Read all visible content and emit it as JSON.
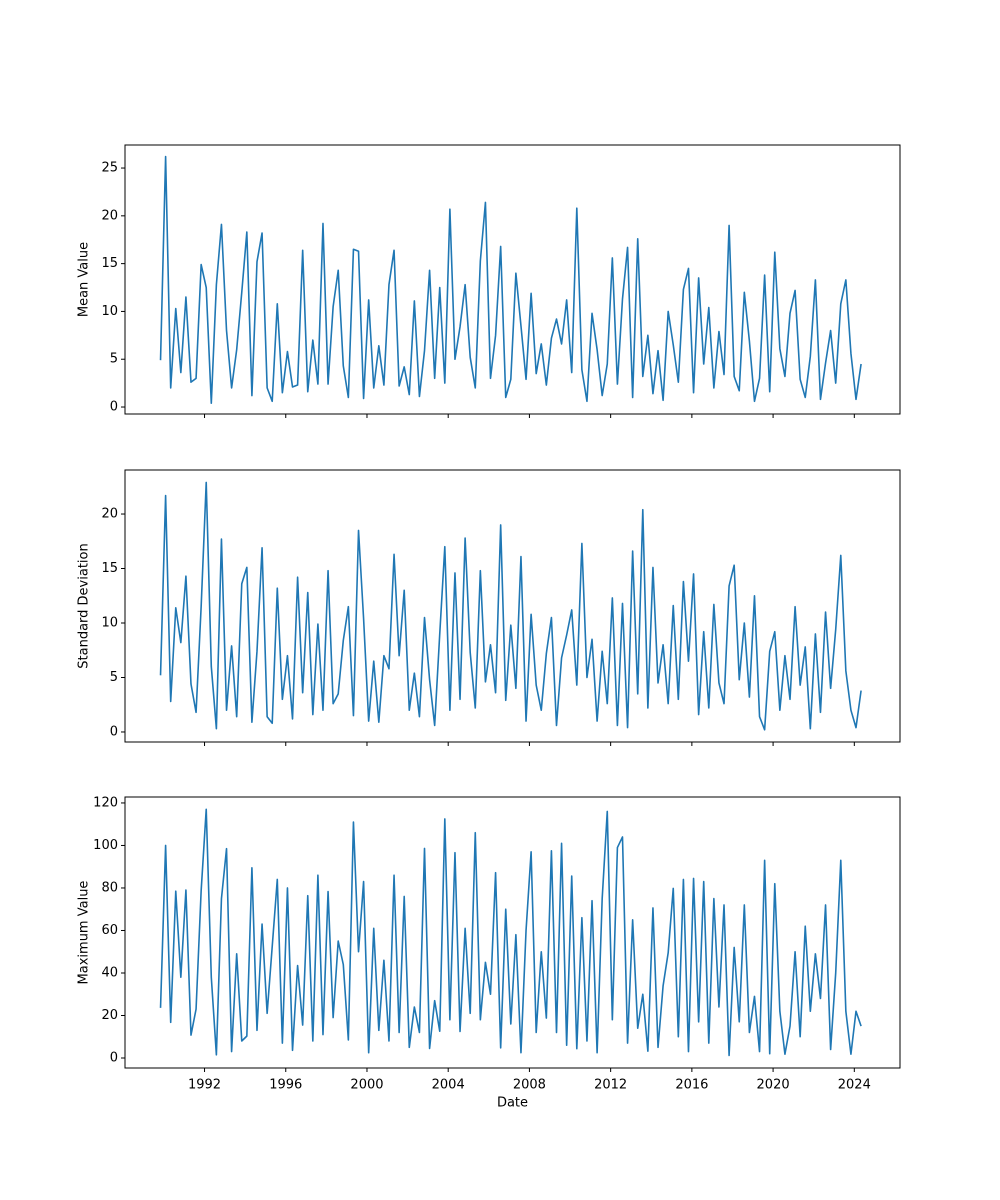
{
  "chart_data": [
    {
      "type": "line",
      "ylabel": "Mean Value",
      "color": "#1f77b4",
      "x": [
        "1989-11",
        "1990-02",
        "1990-05",
        "1990-08",
        "1990-11",
        "1991-02",
        "1991-05",
        "1991-08",
        "1991-11",
        "1992-02",
        "1992-05",
        "1992-08",
        "1992-11",
        "1993-02",
        "1993-05",
        "1993-08",
        "1993-11",
        "1994-02",
        "1994-05",
        "1994-08",
        "1994-11",
        "1995-02",
        "1995-05",
        "1995-08",
        "1995-11",
        "1996-02",
        "1996-05",
        "1996-08",
        "1996-11",
        "1997-02",
        "1997-05",
        "1997-08",
        "1997-11",
        "1998-02",
        "1998-05",
        "1998-08",
        "1998-11",
        "1999-02",
        "1999-05",
        "1999-08",
        "1999-11",
        "2000-02",
        "2000-05",
        "2000-08",
        "2000-11",
        "2001-02",
        "2001-05",
        "2001-08",
        "2001-11",
        "2002-02",
        "2002-05",
        "2002-08",
        "2002-11",
        "2003-02",
        "2003-05",
        "2003-08",
        "2003-11",
        "2004-02",
        "2004-05",
        "2004-08",
        "2004-11",
        "2005-02",
        "2005-05",
        "2005-08",
        "2005-11",
        "2006-02",
        "2006-05",
        "2006-08",
        "2006-11",
        "2007-02",
        "2007-05",
        "2007-08",
        "2007-11",
        "2008-02",
        "2008-05",
        "2008-08",
        "2008-11",
        "2009-02",
        "2009-05",
        "2009-08",
        "2009-11",
        "2010-02",
        "2010-05",
        "2010-08",
        "2010-11",
        "2011-02",
        "2011-05",
        "2011-08",
        "2011-11",
        "2012-02",
        "2012-05",
        "2012-08",
        "2012-11",
        "2013-02",
        "2013-05",
        "2013-08",
        "2013-11",
        "2014-02",
        "2014-05",
        "2014-08",
        "2014-11",
        "2015-02",
        "2015-05",
        "2015-08",
        "2015-11",
        "2016-02",
        "2016-05",
        "2016-08",
        "2016-11",
        "2017-02",
        "2017-05",
        "2017-08",
        "2017-11",
        "2018-02",
        "2018-05",
        "2018-08",
        "2018-11",
        "2019-02",
        "2019-05",
        "2019-08",
        "2019-11",
        "2020-02",
        "2020-05",
        "2020-08",
        "2020-11",
        "2021-02",
        "2021-05",
        "2021-08",
        "2021-11",
        "2022-02",
        "2022-05",
        "2022-08",
        "2022-11",
        "2023-02",
        "2023-05",
        "2023-08",
        "2023-11",
        "2024-02",
        "2024-05"
      ],
      "values": [
        4.9,
        26.2,
        2.0,
        10.3,
        3.6,
        11.5,
        2.6,
        3.0,
        14.9,
        12.5,
        0.4,
        12.8,
        19.1,
        8.0,
        2.0,
        6.0,
        12.0,
        18.3,
        1.2,
        15.2,
        18.2,
        2.0,
        0.6,
        10.8,
        1.5,
        5.8,
        2.1,
        2.3,
        16.4,
        1.6,
        7.0,
        2.4,
        19.2,
        2.4,
        10.5,
        14.3,
        4.3,
        1.0,
        16.5,
        16.3,
        0.9,
        11.2,
        2.0,
        6.4,
        2.3,
        12.8,
        16.4,
        2.2,
        4.2,
        1.3,
        11.1,
        1.1,
        5.9,
        14.3,
        3.0,
        12.5,
        2.5,
        20.7,
        5.0,
        8.4,
        12.8,
        5.2,
        2.0,
        15.3,
        21.4,
        3.0,
        7.5,
        16.8,
        1.0,
        2.9,
        14.0,
        8.5,
        2.9,
        11.9,
        3.5,
        6.6,
        2.3,
        7.2,
        9.2,
        6.6,
        11.2,
        3.6,
        20.8,
        3.9,
        0.6,
        9.8,
        6.0,
        1.2,
        4.5,
        15.6,
        2.4,
        11.3,
        16.7,
        1.0,
        17.6,
        3.2,
        7.5,
        1.4,
        5.9,
        0.7,
        10.0,
        6.5,
        2.6,
        12.3,
        14.5,
        1.5,
        13.5,
        4.5,
        10.4,
        2.0,
        7.9,
        3.4,
        19.0,
        3.2,
        1.7,
        12.0,
        6.9,
        0.6,
        3.0,
        13.8,
        1.6,
        16.2,
        6.1,
        3.2,
        9.8,
        12.2,
        2.9,
        1.0,
        5.3,
        13.3,
        0.8,
        4.6,
        8.0,
        2.5,
        10.8,
        13.3,
        5.6,
        0.8,
        4.5
      ],
      "xlim": [
        "1988-02",
        "2026-04"
      ],
      "xticks": [
        "1992-01",
        "1996-01",
        "2000-01",
        "2004-01",
        "2008-01",
        "2012-01",
        "2016-01",
        "2020-01",
        "2024-01"
      ],
      "ylim": [
        -0.73,
        27.41
      ],
      "yticks": [
        0,
        5,
        10,
        15,
        20,
        25
      ]
    },
    {
      "type": "line",
      "ylabel": "Standard Deviation",
      "color": "#1f77b4",
      "x": [
        "1989-11",
        "1990-02",
        "1990-05",
        "1990-08",
        "1990-11",
        "1991-02",
        "1991-05",
        "1991-08",
        "1991-11",
        "1992-02",
        "1992-05",
        "1992-08",
        "1992-11",
        "1993-02",
        "1993-05",
        "1993-08",
        "1993-11",
        "1994-02",
        "1994-05",
        "1994-08",
        "1994-11",
        "1995-02",
        "1995-05",
        "1995-08",
        "1995-11",
        "1996-02",
        "1996-05",
        "1996-08",
        "1996-11",
        "1997-02",
        "1997-05",
        "1997-08",
        "1997-11",
        "1998-02",
        "1998-05",
        "1998-08",
        "1998-11",
        "1999-02",
        "1999-05",
        "1999-08",
        "1999-11",
        "2000-02",
        "2000-05",
        "2000-08",
        "2000-11",
        "2001-02",
        "2001-05",
        "2001-08",
        "2001-11",
        "2002-02",
        "2002-05",
        "2002-08",
        "2002-11",
        "2003-02",
        "2003-05",
        "2003-08",
        "2003-11",
        "2004-02",
        "2004-05",
        "2004-08",
        "2004-11",
        "2005-02",
        "2005-05",
        "2005-08",
        "2005-11",
        "2006-02",
        "2006-05",
        "2006-08",
        "2006-11",
        "2007-02",
        "2007-05",
        "2007-08",
        "2007-11",
        "2008-02",
        "2008-05",
        "2008-08",
        "2008-11",
        "2009-02",
        "2009-05",
        "2009-08",
        "2009-11",
        "2010-02",
        "2010-05",
        "2010-08",
        "2010-11",
        "2011-02",
        "2011-05",
        "2011-08",
        "2011-11",
        "2012-02",
        "2012-05",
        "2012-08",
        "2012-11",
        "2013-02",
        "2013-05",
        "2013-08",
        "2013-11",
        "2014-02",
        "2014-05",
        "2014-08",
        "2014-11",
        "2015-02",
        "2015-05",
        "2015-08",
        "2015-11",
        "2016-02",
        "2016-05",
        "2016-08",
        "2016-11",
        "2017-02",
        "2017-05",
        "2017-08",
        "2017-11",
        "2018-02",
        "2018-05",
        "2018-08",
        "2018-11",
        "2019-02",
        "2019-05",
        "2019-08",
        "2019-11",
        "2020-02",
        "2020-05",
        "2020-08",
        "2020-11",
        "2021-02",
        "2021-05",
        "2021-08",
        "2021-11",
        "2022-02",
        "2022-05",
        "2022-08",
        "2022-11",
        "2023-02",
        "2023-05",
        "2023-08",
        "2023-11",
        "2024-02",
        "2024-05"
      ],
      "values": [
        5.2,
        21.7,
        2.8,
        11.4,
        8.2,
        14.3,
        4.4,
        1.8,
        11.5,
        22.9,
        6.0,
        0.3,
        17.7,
        2.0,
        7.9,
        1.4,
        13.6,
        15.1,
        0.9,
        7.4,
        16.9,
        1.4,
        0.8,
        13.2,
        3.0,
        7.0,
        1.2,
        14.2,
        3.6,
        12.8,
        1.6,
        9.9,
        2.0,
        14.8,
        2.6,
        3.5,
        8.4,
        11.5,
        1.5,
        18.5,
        10.4,
        1.0,
        6.5,
        0.9,
        7.0,
        5.8,
        16.3,
        7.0,
        13.0,
        2.0,
        5.4,
        1.4,
        10.5,
        4.8,
        0.6,
        9.0,
        17.0,
        2.0,
        14.6,
        3.0,
        17.8,
        7.3,
        2.2,
        14.8,
        4.6,
        8.0,
        3.6,
        19.0,
        2.9,
        9.8,
        4.0,
        16.1,
        1.0,
        10.8,
        4.3,
        2.0,
        7.2,
        10.5,
        0.6,
        6.8,
        8.9,
        11.2,
        4.3,
        17.3,
        5.0,
        8.5,
        1.0,
        7.4,
        2.6,
        12.3,
        0.6,
        11.8,
        0.4,
        16.6,
        3.5,
        20.4,
        2.2,
        15.1,
        4.5,
        8.0,
        2.6,
        11.6,
        3.0,
        13.8,
        6.5,
        14.5,
        1.6,
        9.2,
        2.2,
        11.7,
        4.5,
        2.6,
        13.4,
        15.3,
        4.8,
        10.0,
        3.2,
        12.5,
        1.4,
        0.2,
        7.4,
        9.2,
        2.0,
        7.0,
        3.0,
        11.5,
        4.3,
        7.8,
        0.3,
        9.0,
        1.8,
        11.0,
        4.0,
        9.4,
        16.2,
        5.6,
        2.0,
        0.4,
        3.8
      ],
      "xlim": [
        "1988-02",
        "2026-04"
      ],
      "xticks": [
        "1992-01",
        "1996-01",
        "2000-01",
        "2004-01",
        "2008-01",
        "2012-01",
        "2016-01",
        "2020-01",
        "2024-01"
      ],
      "ylim": [
        -0.92,
        24.04
      ],
      "yticks": [
        0,
        5,
        10,
        15,
        20
      ]
    },
    {
      "type": "line",
      "ylabel": "Maximum Value",
      "xlabel": "Date",
      "color": "#1f77b4",
      "x": [
        "1989-11",
        "1990-02",
        "1990-05",
        "1990-08",
        "1990-11",
        "1991-02",
        "1991-05",
        "1991-08",
        "1991-11",
        "1992-02",
        "1992-05",
        "1992-08",
        "1992-11",
        "1993-02",
        "1993-05",
        "1993-08",
        "1993-11",
        "1994-02",
        "1994-05",
        "1994-08",
        "1994-11",
        "1995-02",
        "1995-05",
        "1995-08",
        "1995-11",
        "1996-02",
        "1996-05",
        "1996-08",
        "1996-11",
        "1997-02",
        "1997-05",
        "1997-08",
        "1997-11",
        "1998-02",
        "1998-05",
        "1998-08",
        "1998-11",
        "1999-02",
        "1999-05",
        "1999-08",
        "1999-11",
        "2000-02",
        "2000-05",
        "2000-08",
        "2000-11",
        "2001-02",
        "2001-05",
        "2001-08",
        "2001-11",
        "2002-02",
        "2002-05",
        "2002-08",
        "2002-11",
        "2003-02",
        "2003-05",
        "2003-08",
        "2003-11",
        "2004-02",
        "2004-05",
        "2004-08",
        "2004-11",
        "2005-02",
        "2005-05",
        "2005-08",
        "2005-11",
        "2006-02",
        "2006-05",
        "2006-08",
        "2006-11",
        "2007-02",
        "2007-05",
        "2007-08",
        "2007-11",
        "2008-02",
        "2008-05",
        "2008-08",
        "2008-11",
        "2009-02",
        "2009-05",
        "2009-08",
        "2009-11",
        "2010-02",
        "2010-05",
        "2010-08",
        "2010-11",
        "2011-02",
        "2011-05",
        "2011-08",
        "2011-11",
        "2012-02",
        "2012-05",
        "2012-08",
        "2012-11",
        "2013-02",
        "2013-05",
        "2013-08",
        "2013-11",
        "2014-02",
        "2014-05",
        "2014-08",
        "2014-11",
        "2015-02",
        "2015-05",
        "2015-08",
        "2015-11",
        "2016-02",
        "2016-05",
        "2016-08",
        "2016-11",
        "2017-02",
        "2017-05",
        "2017-08",
        "2017-11",
        "2018-02",
        "2018-05",
        "2018-08",
        "2018-11",
        "2019-02",
        "2019-05",
        "2019-08",
        "2019-11",
        "2020-02",
        "2020-05",
        "2020-08",
        "2020-11",
        "2021-02",
        "2021-05",
        "2021-08",
        "2021-11",
        "2022-02",
        "2022-05",
        "2022-08",
        "2022-11",
        "2023-02",
        "2023-05",
        "2023-08",
        "2023-11",
        "2024-02",
        "2024-05"
      ],
      "values": [
        23.6,
        100.0,
        16.8,
        78.5,
        38.0,
        79.0,
        10.8,
        23.0,
        78.7,
        117.0,
        38.0,
        1.5,
        75.0,
        98.5,
        3.0,
        49.0,
        8.0,
        10.3,
        89.5,
        13.0,
        63.0,
        21.0,
        52.5,
        84.0,
        7.0,
        80.0,
        3.6,
        43.5,
        15.5,
        76.4,
        8.0,
        86.0,
        11.0,
        78.3,
        19.0,
        55.0,
        44.0,
        8.5,
        111.0,
        50.0,
        83.0,
        2.5,
        61.0,
        13.0,
        46.0,
        8.0,
        86.0,
        12.0,
        76.0,
        5.0,
        24.0,
        12.0,
        98.6,
        4.5,
        27.0,
        12.6,
        112.5,
        18.0,
        96.6,
        12.5,
        61.0,
        21.0,
        106.0,
        18.0,
        45.0,
        30.0,
        87.2,
        4.8,
        70.0,
        16.0,
        58.0,
        2.5,
        60.0,
        97.0,
        12.0,
        50.0,
        18.8,
        97.5,
        12.0,
        101.0,
        6.0,
        85.6,
        4.4,
        66.0,
        8.0,
        74.0,
        2.5,
        75.0,
        116.0,
        18.0,
        99.0,
        104.0,
        7.0,
        65.0,
        14.0,
        30.0,
        3.2,
        70.6,
        5.0,
        34.0,
        49.5,
        79.8,
        10.0,
        84.0,
        3.0,
        84.5,
        17.0,
        83.0,
        7.0,
        75.0,
        24.0,
        72.0,
        1.2,
        52.0,
        17.0,
        72.0,
        12.0,
        29.0,
        3.0,
        93.0,
        2.0,
        82.0,
        22.0,
        1.8,
        15.0,
        50.0,
        10.0,
        62.0,
        22.0,
        49.0,
        28.0,
        72.0,
        4.0,
        40.0,
        93.0,
        22.0,
        1.8,
        22.0,
        15.0
      ],
      "xlim": [
        "1988-02",
        "2026-04"
      ],
      "xticks": [
        {
          "value": "1992-01",
          "label": "1992"
        },
        {
          "value": "1996-01",
          "label": "1996"
        },
        {
          "value": "2000-01",
          "label": "2000"
        },
        {
          "value": "2004-01",
          "label": "2004"
        },
        {
          "value": "2008-01",
          "label": "2008"
        },
        {
          "value": "2012-01",
          "label": "2012"
        },
        {
          "value": "2016-01",
          "label": "2016"
        },
        {
          "value": "2020-01",
          "label": "2020"
        },
        {
          "value": "2024-01",
          "label": "2024"
        }
      ],
      "ylim": [
        -4.7,
        122.8
      ],
      "yticks": [
        0,
        20,
        40,
        60,
        80,
        100,
        120
      ]
    }
  ]
}
